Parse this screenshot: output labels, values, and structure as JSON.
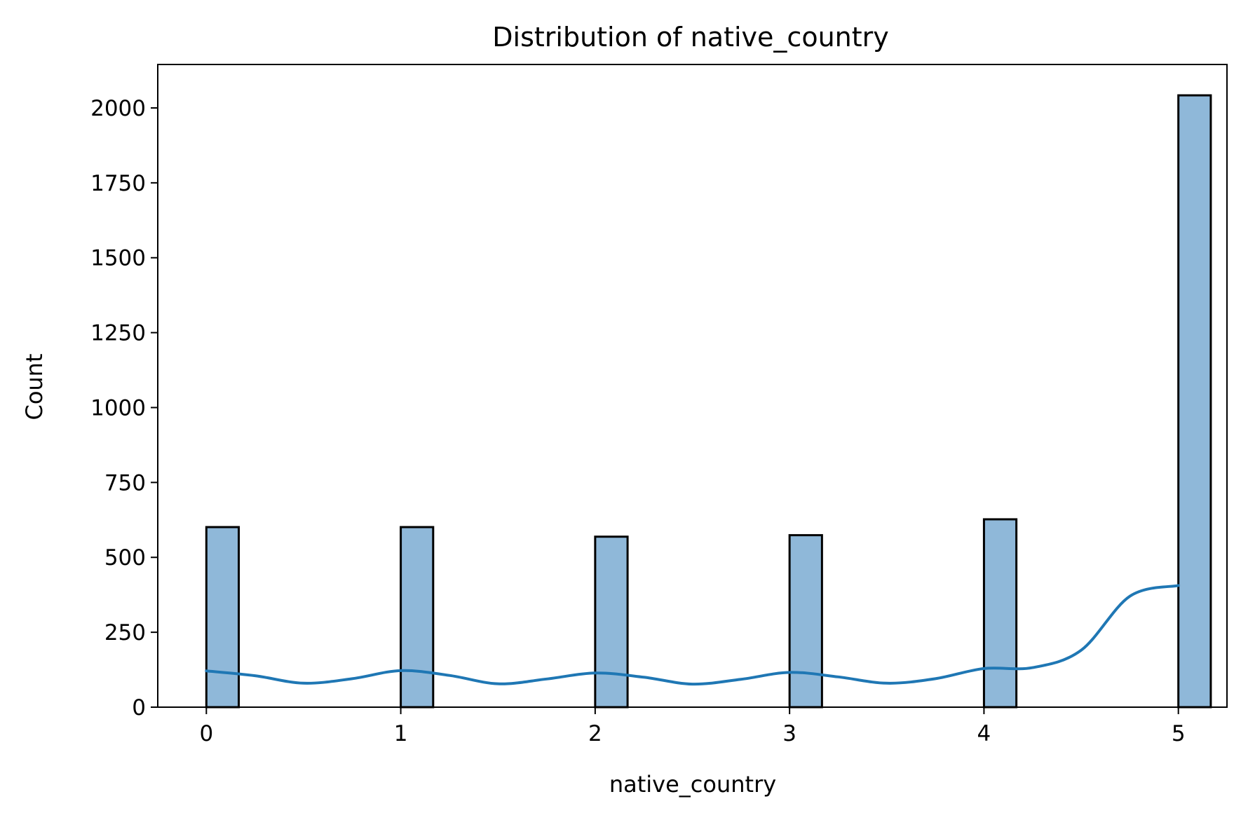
{
  "chart_data": {
    "type": "bar",
    "title": "Distribution of native_country",
    "xlabel": "native_country",
    "ylabel": "Count",
    "x_ticks": [
      0,
      1,
      2,
      3,
      4,
      5
    ],
    "y_ticks": [
      0,
      250,
      500,
      750,
      1000,
      1250,
      1500,
      1750,
      2000
    ],
    "xlim": [
      -0.25,
      5.25
    ],
    "ylim": [
      0,
      2145
    ],
    "bar_width": 0.1667,
    "bars": [
      {
        "x": 0,
        "value": 601
      },
      {
        "x": 1,
        "value": 601
      },
      {
        "x": 2,
        "value": 569
      },
      {
        "x": 3,
        "value": 574
      },
      {
        "x": 4,
        "value": 627
      },
      {
        "x": 5,
        "value": 2042
      }
    ],
    "kde": {
      "name": "",
      "x": [
        0,
        0.25,
        0.5,
        0.75,
        1,
        1.25,
        1.5,
        1.75,
        2,
        2.25,
        2.5,
        2.75,
        3,
        3.25,
        3.5,
        3.75,
        4,
        4.25,
        4.5,
        4.75,
        5
      ],
      "y": [
        121,
        105,
        80,
        95,
        122,
        106,
        78,
        94,
        114,
        100,
        77,
        93,
        116,
        101,
        80,
        95,
        129,
        132,
        190,
        370,
        406
      ]
    },
    "colors": {
      "bar_fill": "#8fb8d9",
      "bar_edge": "#000000",
      "kde_line": "#1f77b4"
    },
    "grid": false
  }
}
